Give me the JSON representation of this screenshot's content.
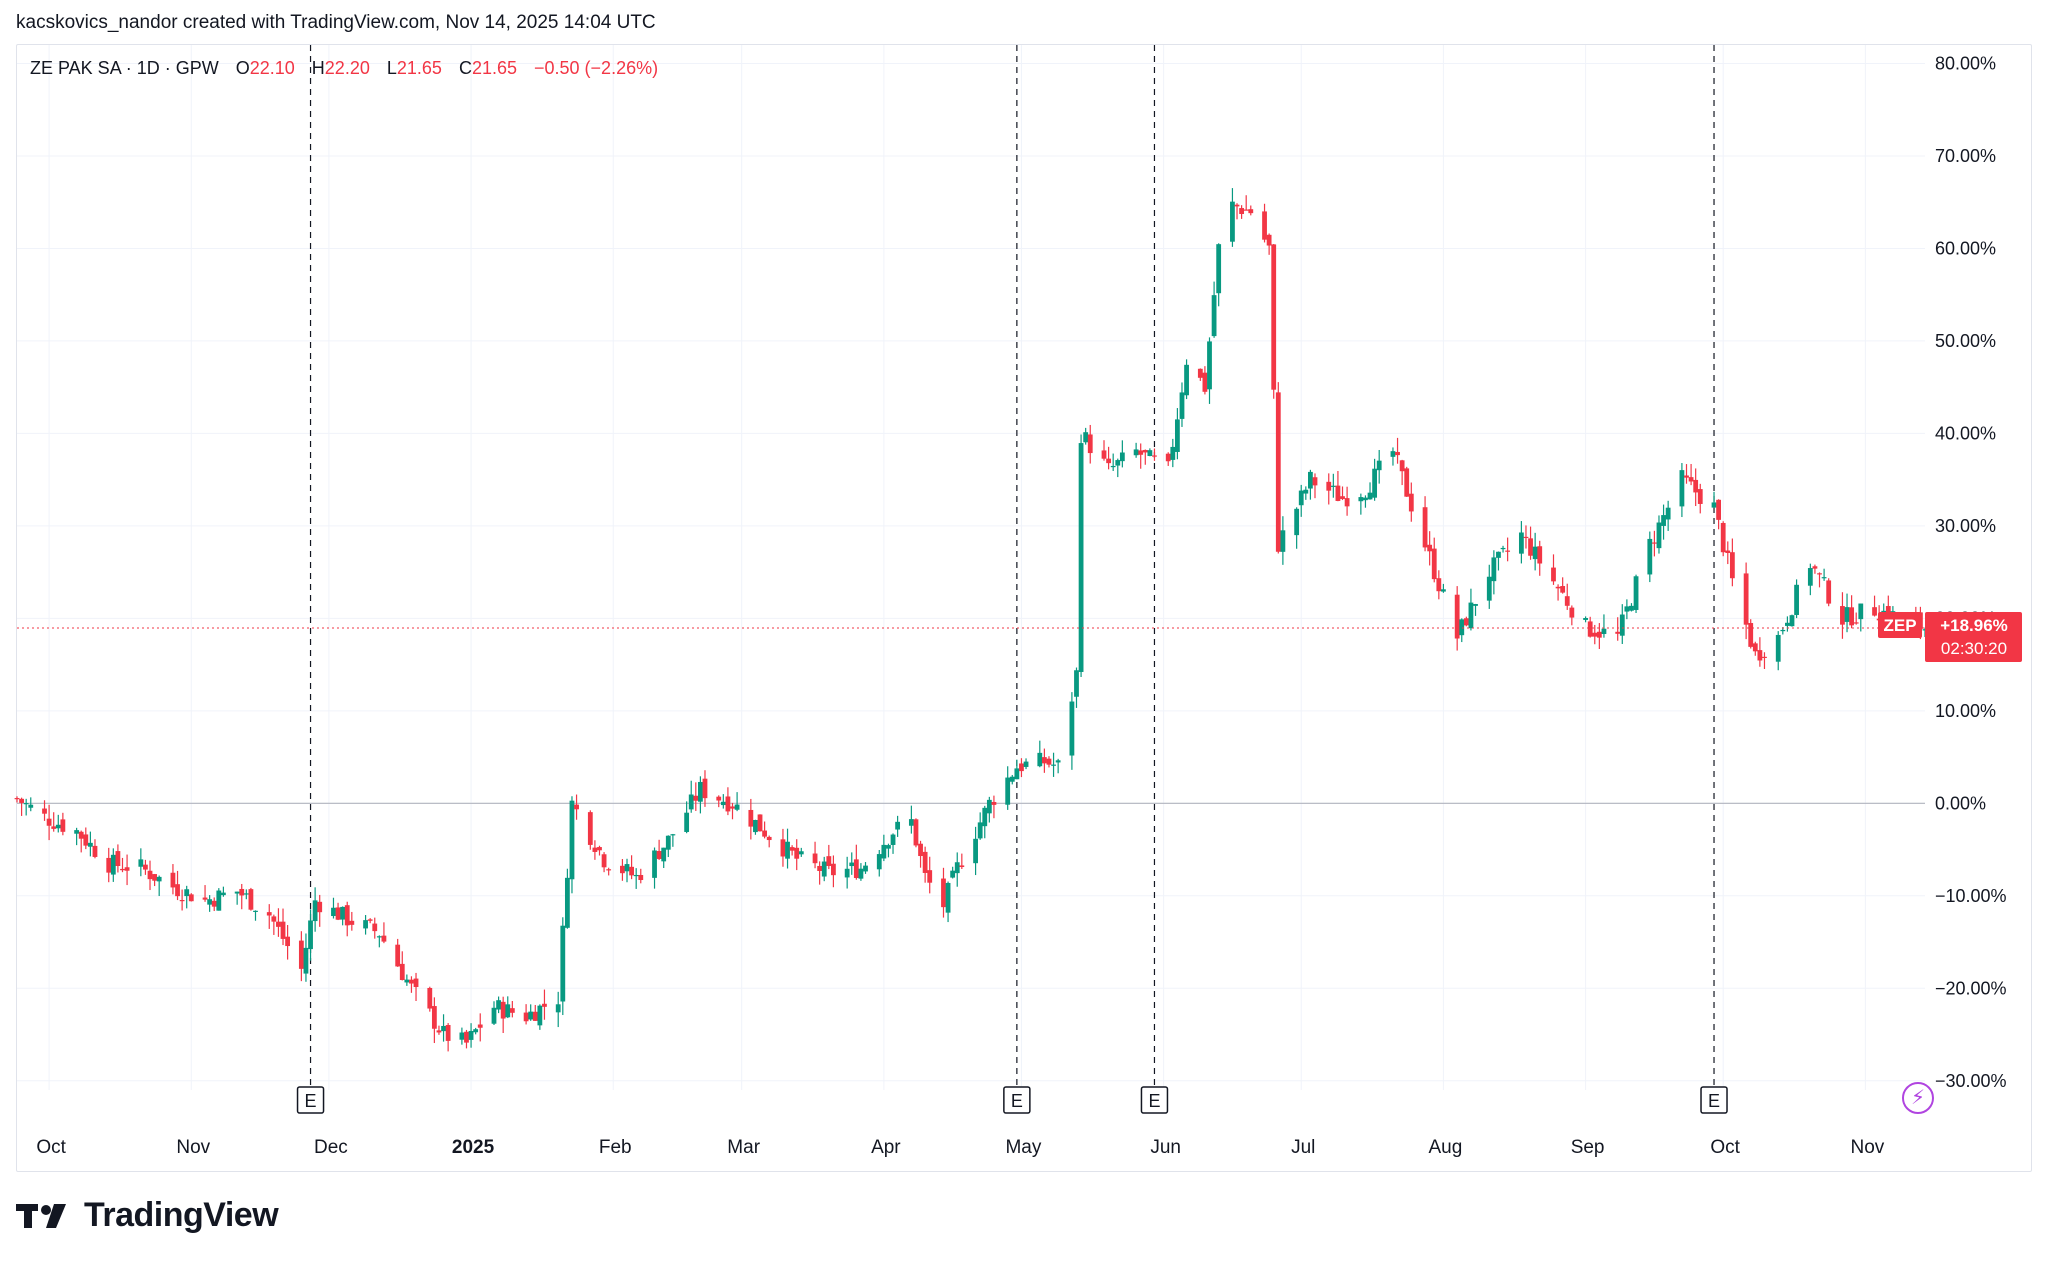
{
  "header": {
    "credit": "kacskovics_nandor created with TradingView.com, Nov 14, 2025 14:04 UTC"
  },
  "legend": {
    "symbol": "ZE PAK SA · 1D · GPW",
    "open_label": "O",
    "open": "22.10",
    "high_label": "H",
    "high": "22.20",
    "low_label": "L",
    "low": "21.65",
    "close_label": "C",
    "close": "21.65",
    "change": "−0.50 (−2.26%)"
  },
  "price_badge": {
    "ticker": "ZEP",
    "percent": "+18.96%",
    "countdown": "02:30:20"
  },
  "brand": {
    "name": "TradingView"
  },
  "colors": {
    "up": "#089981",
    "down": "#f23645",
    "grid": "#f0f3fa",
    "zero_line": "#b2b5be",
    "price_line": "#f23645",
    "text": "#131722"
  },
  "icons": {
    "logo": "tradingview-logo-icon",
    "bolt": "lightning-icon",
    "earnings": "earnings-e-icon"
  },
  "chart_data": {
    "type": "candlestick",
    "y_unit": "percent change",
    "ylim": [
      -31,
      82
    ],
    "y_ticks": [
      80,
      70,
      60,
      50,
      40,
      30,
      20,
      10,
      0,
      -10,
      -20,
      -30
    ],
    "y_tick_labels": [
      "80.00%",
      "70.00%",
      "60.00%",
      "50.00%",
      "40.00%",
      "30.00%",
      "20.00%",
      "10.00%",
      "0.00%",
      "−10.00%",
      "−20.00%",
      "−30.00%"
    ],
    "x_labels": [
      {
        "label": "Oct",
        "date": "2024-10-01",
        "bold": false
      },
      {
        "label": "Nov",
        "date": "2024-11-01",
        "bold": false
      },
      {
        "label": "Dec",
        "date": "2024-12-01",
        "bold": false
      },
      {
        "label": "2025",
        "date": "2025-01-01",
        "bold": true
      },
      {
        "label": "Feb",
        "date": "2025-02-01",
        "bold": false
      },
      {
        "label": "Mar",
        "date": "2025-03-01",
        "bold": false
      },
      {
        "label": "Apr",
        "date": "2025-04-01",
        "bold": false
      },
      {
        "label": "May",
        "date": "2025-05-01",
        "bold": false
      },
      {
        "label": "Jun",
        "date": "2025-06-01",
        "bold": false
      },
      {
        "label": "Jul",
        "date": "2025-07-01",
        "bold": false
      },
      {
        "label": "Aug",
        "date": "2025-08-01",
        "bold": false
      },
      {
        "label": "Sep",
        "date": "2025-09-01",
        "bold": false
      },
      {
        "label": "Oct",
        "date": "2025-10-01",
        "bold": false
      },
      {
        "label": "Nov",
        "date": "2025-11-01",
        "bold": false
      }
    ],
    "earnings_markers": [
      {
        "label": "E",
        "date": "2024-11-27"
      },
      {
        "label": "E",
        "date": "2025-04-30"
      },
      {
        "label": "E",
        "date": "2025-05-30"
      },
      {
        "label": "E",
        "date": "2025-09-29"
      }
    ],
    "current_value": 18.96,
    "zero_line": 0,
    "date_start": "2024-09-24",
    "date_end": "2025-11-14",
    "close_path": [
      [
        "2024-09-24",
        0.5
      ],
      [
        "2024-09-30",
        -1.5
      ],
      [
        "2024-10-07",
        -3
      ],
      [
        "2024-10-14",
        -6.5
      ],
      [
        "2024-10-21",
        -7
      ],
      [
        "2024-10-28",
        -9
      ],
      [
        "2024-11-04",
        -10.5
      ],
      [
        "2024-11-11",
        -9.5
      ],
      [
        "2024-11-18",
        -12
      ],
      [
        "2024-11-25",
        -18
      ],
      [
        "2024-11-28",
        -10.5
      ],
      [
        "2024-12-05",
        -12.5
      ],
      [
        "2024-12-12",
        -14
      ],
      [
        "2024-12-19",
        -20
      ],
      [
        "2024-12-26",
        -25
      ],
      [
        "2024-12-31",
        -26
      ],
      [
        "2025-01-06",
        -22
      ],
      [
        "2025-01-13",
        -23
      ],
      [
        "2025-01-20",
        -21
      ],
      [
        "2025-01-23",
        0
      ],
      [
        "2025-01-30",
        -6
      ],
      [
        "2025-02-06",
        -8
      ],
      [
        "2025-02-13",
        -4
      ],
      [
        "2025-02-20",
        1.5
      ],
      [
        "2025-02-27",
        0
      ],
      [
        "2025-03-06",
        -3
      ],
      [
        "2025-03-13",
        -6
      ],
      [
        "2025-03-20",
        -7.5
      ],
      [
        "2025-03-27",
        -7
      ],
      [
        "2025-04-03",
        -3
      ],
      [
        "2025-04-07",
        -2
      ],
      [
        "2025-04-10",
        -8
      ],
      [
        "2025-04-14",
        -11
      ],
      [
        "2025-04-17",
        -7
      ],
      [
        "2025-04-24",
        0
      ],
      [
        "2025-04-30",
        4
      ],
      [
        "2025-05-06",
        4.5
      ],
      [
        "2025-05-09",
        4
      ],
      [
        "2025-05-13",
        14
      ],
      [
        "2025-05-14",
        40
      ],
      [
        "2025-05-20",
        36
      ],
      [
        "2025-05-26",
        38
      ],
      [
        "2025-06-02",
        36
      ],
      [
        "2025-06-06",
        48
      ],
      [
        "2025-06-10",
        45
      ],
      [
        "2025-06-14",
        65
      ],
      [
        "2025-06-20",
        64
      ],
      [
        "2025-06-24",
        60
      ],
      [
        "2025-06-26",
        28
      ],
      [
        "2025-07-03",
        35
      ],
      [
        "2025-07-10",
        33
      ],
      [
        "2025-07-15",
        34
      ],
      [
        "2025-07-21",
        38
      ],
      [
        "2025-07-28",
        28
      ],
      [
        "2025-08-04",
        18
      ],
      [
        "2025-08-11",
        25
      ],
      [
        "2025-08-18",
        29
      ],
      [
        "2025-08-25",
        24
      ],
      [
        "2025-09-01",
        19
      ],
      [
        "2025-09-08",
        18
      ],
      [
        "2025-09-15",
        28
      ],
      [
        "2025-09-22",
        35
      ],
      [
        "2025-09-29",
        32
      ],
      [
        "2025-10-03",
        24
      ],
      [
        "2025-10-08",
        16
      ],
      [
        "2025-10-13",
        18
      ],
      [
        "2025-10-20",
        26
      ],
      [
        "2025-10-27",
        20
      ],
      [
        "2025-11-03",
        21
      ],
      [
        "2025-11-14",
        19
      ]
    ]
  }
}
